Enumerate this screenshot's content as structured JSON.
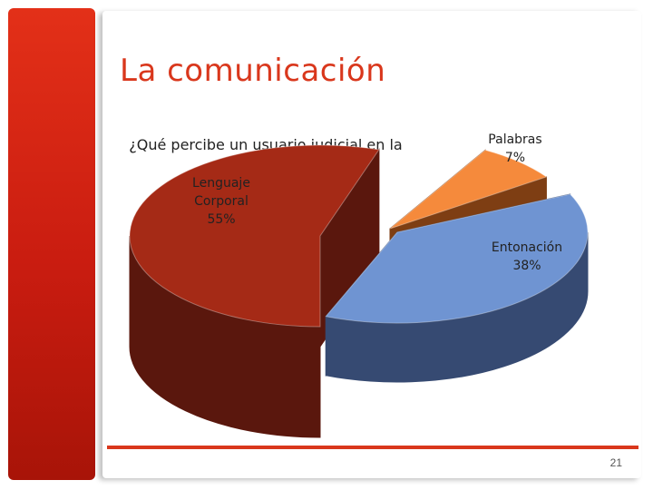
{
  "slide": {
    "title": "La comunicación",
    "page_number": "21"
  },
  "colors": {
    "accent": "#d9371c",
    "lenguaje_top": "#a52a16",
    "lenguaje_side": "#5a170d",
    "palabras_top": "#f58a3c",
    "palabras_side": "#7e3e13",
    "entonacion_top": "#6f94d2",
    "entonacion_side": "#364a72"
  },
  "chart_data": {
    "type": "pie",
    "style": "3d-exploded",
    "title": "¿Qué percibe un usuario judicial en la comunicación?",
    "slices": [
      {
        "label": "Lenguaje Corporal",
        "label_lines": [
          "Lenguaje",
          "Corporal",
          "55%"
        ],
        "value": 55
      },
      {
        "label": "Palabras",
        "label_lines": [
          "Palabras",
          "7%"
        ],
        "value": 7
      },
      {
        "label": "Entonación",
        "label_lines": [
          "Entonación",
          "38%"
        ],
        "value": 38
      }
    ],
    "legend": "none"
  }
}
